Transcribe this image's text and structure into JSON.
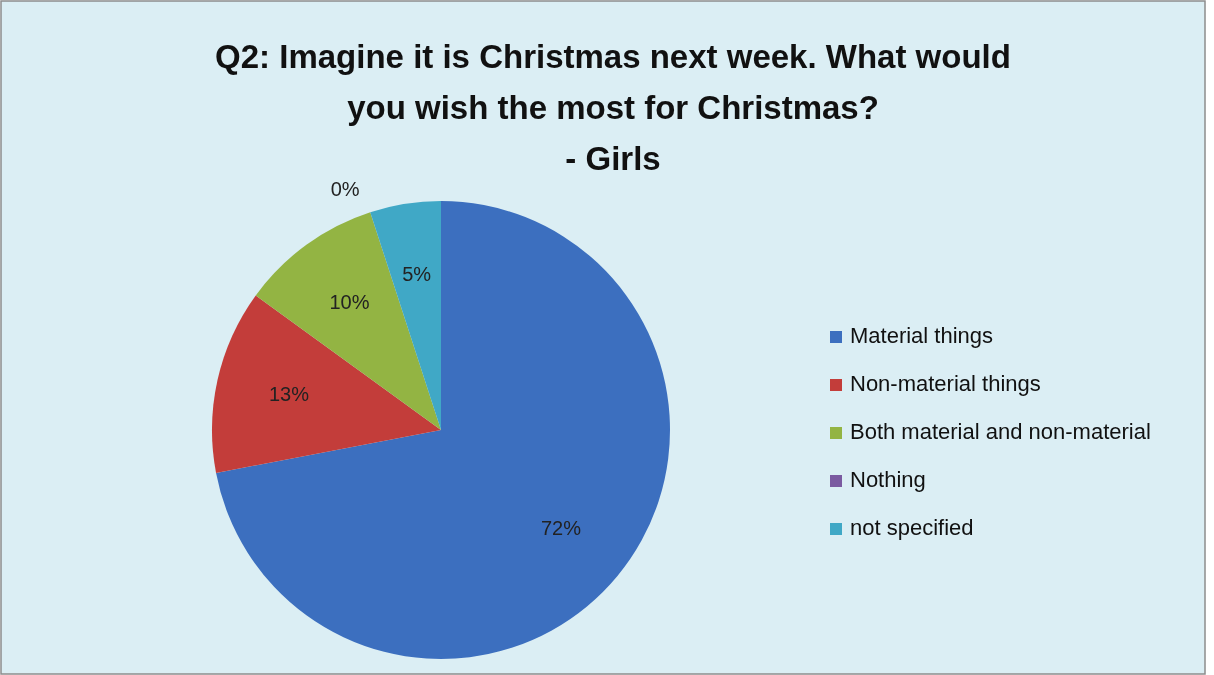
{
  "chart_data": {
    "type": "pie",
    "title": "Q2: Imagine it is Christmas next week. What would\nyou wish the most for Christmas?\n- Girls",
    "categories": [
      "Material things",
      "Non-material things",
      "Both material and non-material",
      "Nothing",
      "not specified"
    ],
    "values": [
      72,
      13,
      10,
      0,
      5
    ],
    "value_labels": [
      "72%",
      "13%",
      "10%",
      "0%",
      "5%"
    ],
    "colors": [
      "#3c6fbf",
      "#c33d3a",
      "#93b443",
      "#7a5aa0",
      "#40a8c6"
    ],
    "legend": "right"
  }
}
